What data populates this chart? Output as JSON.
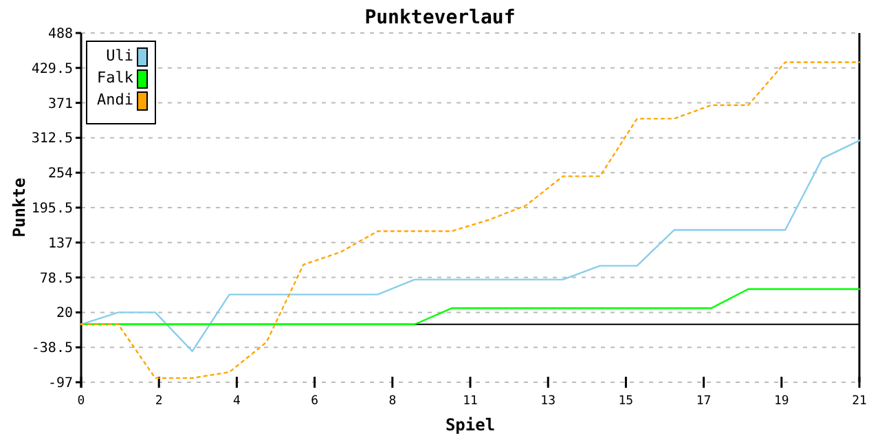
{
  "chart_data": {
    "type": "line",
    "title": "Punkteverlauf",
    "xlabel": "Spiel",
    "ylabel": "Punkte",
    "x": [
      0,
      1,
      2,
      3,
      4,
      5,
      6,
      7,
      8,
      9,
      10,
      11,
      12,
      13,
      14,
      15,
      16,
      17,
      18,
      19,
      20,
      21
    ],
    "series": [
      {
        "name": "Uli",
        "color": "#87ceeb",
        "line_style": "solid",
        "values": [
          0,
          20,
          20,
          -45,
          50,
          50,
          50,
          50,
          50,
          75,
          75,
          75,
          75,
          75,
          98,
          98,
          158,
          158,
          158,
          158,
          278,
          308
        ]
      },
      {
        "name": "Falk",
        "color": "#00ff00",
        "line_style": "solid",
        "values": [
          0,
          0,
          0,
          0,
          0,
          0,
          0,
          0,
          0,
          0,
          27,
          27,
          27,
          27,
          27,
          27,
          27,
          27,
          59,
          59,
          59,
          59
        ]
      },
      {
        "name": "Andi",
        "color": "#ffa500",
        "line_style": "dotted",
        "values": [
          0,
          0,
          -90,
          -90,
          -80,
          -30,
          100,
          121,
          156,
          156,
          156,
          175,
          199,
          248,
          248,
          344.5,
          344.5,
          367,
          367,
          439,
          439,
          439
        ]
      }
    ],
    "xlim": [
      0,
      21
    ],
    "xticks": [
      0,
      {
        "value": 2.1,
        "label": "2"
      },
      {
        "value": 4.2,
        "label": "4"
      },
      {
        "value": 6.3,
        "label": "6"
      },
      {
        "value": 8.4,
        "label": "8"
      },
      {
        "value": 10.5,
        "label": "11"
      },
      {
        "value": 12.6,
        "label": "13"
      },
      {
        "value": 14.7,
        "label": "15"
      },
      {
        "value": 16.8,
        "label": "17"
      },
      {
        "value": 18.9,
        "label": "19"
      },
      21
    ],
    "ylim": [
      -97,
      488
    ],
    "yticks": [
      -97,
      -38.5,
      20,
      78.5,
      137,
      195.5,
      254,
      312.5,
      371,
      429.5,
      488
    ],
    "grid": "y",
    "legend": "top left",
    "marker": "none",
    "ref_lines": [
      {
        "axis": "y",
        "value": 0,
        "color": "#000000",
        "line_style": "solid"
      }
    ]
  }
}
